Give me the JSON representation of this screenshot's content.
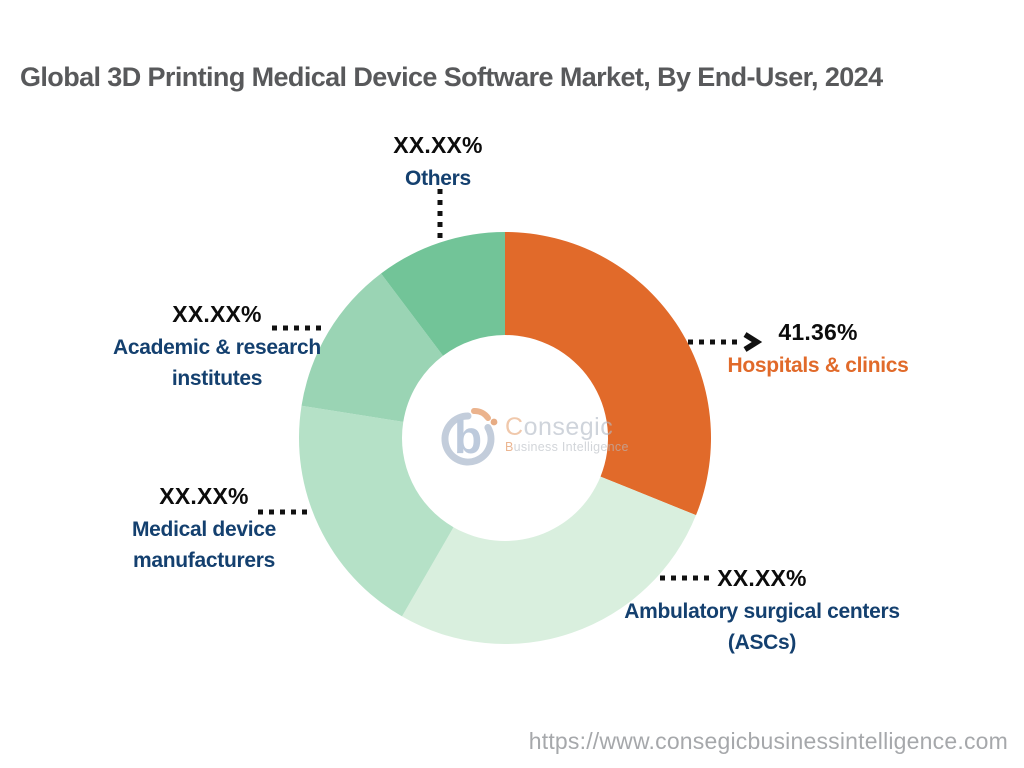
{
  "title": "Global 3D Printing Medical Device Software Market, By End-User, 2024",
  "colors": {
    "accent_orange": "#E16A2A",
    "label_navy": "#14406F",
    "value_black": "#0C0C0C",
    "title_gray": "#58595B",
    "url_gray": "#A6A8AB",
    "leader_black": "#111111",
    "background": "#FFFFFF"
  },
  "chart_data": {
    "type": "pie",
    "subtype": "donut",
    "title": "Global 3D Printing Medical Device Software Market, By End-User, 2024",
    "legend_position": "callouts-around-chart",
    "segments": [
      {
        "key": "hospitals",
        "label": "Hospitals & clinics",
        "value_label": "41.36%",
        "value_pct": 41.36,
        "start_angle": 0,
        "end_angle": 112,
        "color": "#E16A2A"
      },
      {
        "key": "ascs",
        "label": "Ambulatory surgical centers (ASCs)",
        "value_label": "XX.XX%",
        "value_pct": null,
        "start_angle": 112,
        "end_angle": 210,
        "color": "#D9EFDE"
      },
      {
        "key": "medical",
        "label": "Medical device manufacturers",
        "value_label": "XX.XX%",
        "value_pct": null,
        "start_angle": 210,
        "end_angle": 279,
        "color": "#B5E1C7"
      },
      {
        "key": "academic",
        "label": "Academic & research institutes",
        "value_label": "XX.XX%",
        "value_pct": null,
        "start_angle": 279,
        "end_angle": 323,
        "color": "#9AD4B4"
      },
      {
        "key": "others",
        "label": "Others",
        "value_label": "XX.XX%",
        "value_pct": null,
        "start_angle": 323,
        "end_angle": 360,
        "color": "#72C498"
      }
    ]
  },
  "callouts": {
    "others": {
      "value": "XX.XX%",
      "line1": "Others"
    },
    "hospitals": {
      "value": "41.36%",
      "line1": "Hospitals & clinics"
    },
    "academic": {
      "value": "XX.XX%",
      "line1": "Academic & research",
      "line2": "institutes"
    },
    "medical": {
      "value": "XX.XX%",
      "line1": "Medical device",
      "line2": "manufacturers"
    },
    "ascs": {
      "value": "XX.XX%",
      "line1": "Ambulatory surgical centers",
      "line2": "(ASCs)"
    }
  },
  "watermark": {
    "brand": "Consegic",
    "tagline": "Business Intelligence"
  },
  "footer": {
    "url": "https://www.consegicbusinessintelligence.com"
  }
}
